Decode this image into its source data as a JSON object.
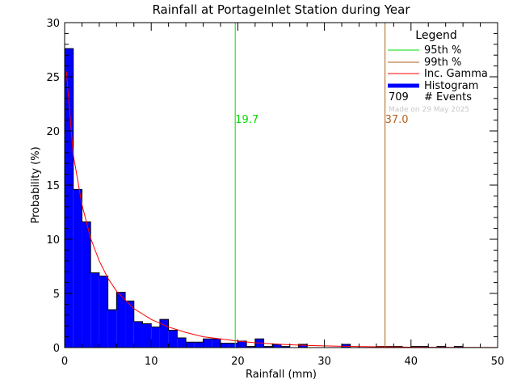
{
  "title": "Rainfall at PortageInlet Station during Year",
  "xlabel": "Rainfall (mm)",
  "ylabel": "Probability (%)",
  "legend": {
    "title": "Legend",
    "items": [
      {
        "label": "95th %",
        "color": "#00dd00",
        "kind": "line"
      },
      {
        "label": "99th %",
        "color": "#b0601e",
        "kind": "line"
      },
      {
        "label": "Inc. Gamma",
        "color": "#ff0000",
        "kind": "line"
      },
      {
        "label": "Histogram",
        "color": "#0000ff",
        "kind": "thick"
      }
    ],
    "events_count": "709",
    "events_label": "# Events",
    "made_on": "Made on 29 May 2025"
  },
  "markers": {
    "p95": {
      "value": 19.7,
      "label": "19.7",
      "color": "#00dd00"
    },
    "p99": {
      "value": 37.0,
      "label": "37.0",
      "color": "#b0601e"
    }
  },
  "chart_data": {
    "type": "bar",
    "title": "Rainfall at PortageInlet Station during Year",
    "xlabel": "Rainfall (mm)",
    "ylabel": "Probability (%)",
    "xlim": [
      0,
      50
    ],
    "ylim": [
      0,
      30
    ],
    "xticks": [
      0,
      10,
      20,
      30,
      40,
      50
    ],
    "yticks": [
      0,
      5,
      10,
      15,
      20,
      25,
      30
    ],
    "grid": false,
    "legend_position": "upper right",
    "bin_width": 1,
    "bins_start": [
      0,
      1,
      2,
      3,
      4,
      5,
      6,
      7,
      8,
      9,
      10,
      11,
      12,
      13,
      14,
      15,
      16,
      17,
      18,
      19,
      20,
      21,
      22,
      23,
      24,
      25,
      26,
      27,
      28,
      29,
      30,
      31,
      32,
      33,
      34,
      35,
      36,
      37,
      38,
      39,
      40,
      41,
      42,
      43,
      44,
      45,
      46,
      47,
      48,
      49
    ],
    "series": [
      {
        "name": "Histogram",
        "color": "#0000ff",
        "values": [
          27.6,
          14.6,
          11.6,
          6.9,
          6.6,
          3.5,
          5.1,
          4.3,
          2.4,
          2.2,
          1.9,
          2.6,
          1.6,
          0.9,
          0.5,
          0.5,
          0.8,
          0.8,
          0.4,
          0.4,
          0.6,
          0.1,
          0.8,
          0.1,
          0.3,
          0.1,
          0.0,
          0.3,
          0.0,
          0.0,
          0.0,
          0.0,
          0.3,
          0.0,
          0.0,
          0.0,
          0.1,
          0.1,
          0.1,
          0.0,
          0.1,
          0.1,
          0.0,
          0.1,
          0.0,
          0.1,
          0.0,
          0.0,
          0.0,
          0.0
        ]
      },
      {
        "name": "Inc. Gamma",
        "color": "#ff0000",
        "type": "line",
        "x": [
          0.2,
          1,
          2,
          3,
          4,
          5,
          6,
          8,
          10,
          12,
          14,
          16,
          18,
          20,
          22,
          25,
          28,
          32,
          36,
          40,
          45,
          50
        ],
        "values": [
          25.5,
          17.8,
          13.2,
          10.1,
          8.0,
          6.4,
          5.2,
          3.6,
          2.6,
          1.9,
          1.4,
          1.0,
          0.8,
          0.6,
          0.45,
          0.3,
          0.2,
          0.12,
          0.07,
          0.04,
          0.02,
          0.01
        ]
      }
    ],
    "vlines": [
      {
        "name": "95th %",
        "x": 19.7,
        "color": "#00dd00"
      },
      {
        "name": "99th %",
        "x": 37.0,
        "color": "#b0601e"
      }
    ]
  }
}
